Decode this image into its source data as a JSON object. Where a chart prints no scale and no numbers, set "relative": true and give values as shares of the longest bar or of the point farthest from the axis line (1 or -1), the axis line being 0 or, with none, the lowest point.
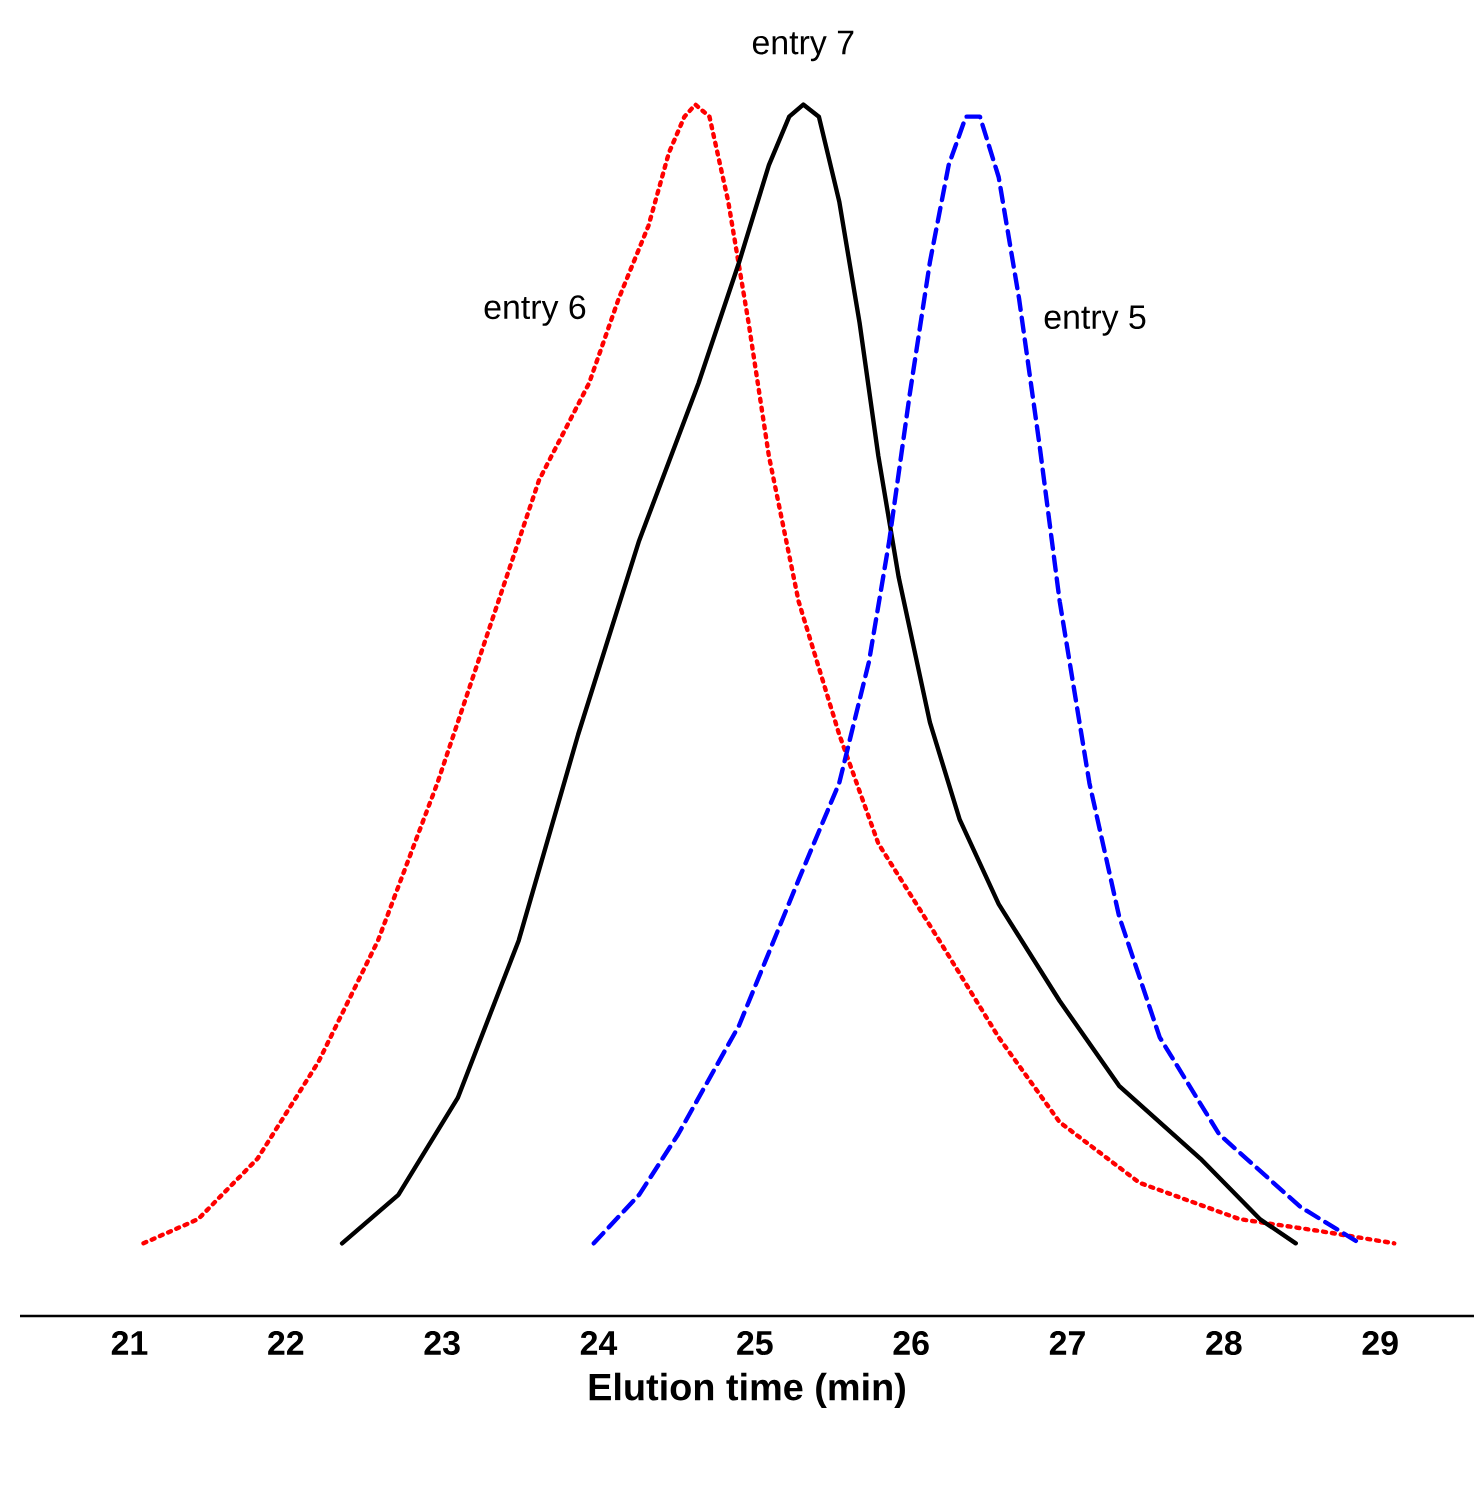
{
  "chart_data": {
    "type": "line",
    "relative": true,
    "xlabel": "Elution time (min)",
    "xlim": [
      20.3,
      29.6
    ],
    "xticks": [
      21,
      22,
      23,
      24,
      25,
      26,
      27,
      28,
      29
    ],
    "series": [
      {
        "name": "entry 6",
        "color": "#ff0000",
        "line_style": "dotted",
        "x": [
          21.09,
          21.44,
          21.82,
          22.21,
          22.59,
          22.97,
          23.36,
          23.62,
          23.94,
          24.13,
          24.32,
          24.45,
          24.55,
          24.62,
          24.71,
          24.83,
          24.96,
          25.09,
          25.28,
          25.54,
          25.79,
          26.18,
          26.56,
          26.95,
          27.46,
          28.1,
          28.62,
          29.09
        ],
        "values": [
          0.06,
          0.08,
          0.13,
          0.21,
          0.31,
          0.44,
          0.59,
          0.69,
          0.77,
          0.84,
          0.9,
          0.96,
          0.99,
          1.0,
          0.99,
          0.92,
          0.82,
          0.71,
          0.59,
          0.48,
          0.39,
          0.31,
          0.23,
          0.16,
          0.11,
          0.08,
          0.07,
          0.06
        ]
      },
      {
        "name": "entry 7",
        "color": "#000000",
        "line_style": "solid",
        "x": [
          22.36,
          22.72,
          23.1,
          23.49,
          23.87,
          24.26,
          24.64,
          24.9,
          25.09,
          25.22,
          25.31,
          25.41,
          25.54,
          25.67,
          25.79,
          25.92,
          26.12,
          26.31,
          26.56,
          26.95,
          27.33,
          27.85,
          28.23,
          28.46
        ],
        "values": [
          0.06,
          0.1,
          0.18,
          0.31,
          0.48,
          0.64,
          0.77,
          0.87,
          0.95,
          0.99,
          1.0,
          0.99,
          0.92,
          0.82,
          0.71,
          0.61,
          0.49,
          0.41,
          0.34,
          0.26,
          0.19,
          0.13,
          0.08,
          0.06
        ]
      },
      {
        "name": "entry 5",
        "color": "#0000ff",
        "line_style": "dashed",
        "x": [
          23.97,
          24.26,
          24.51,
          24.9,
          25.28,
          25.54,
          25.73,
          25.86,
          25.99,
          26.12,
          26.24,
          26.35,
          26.44,
          26.56,
          26.69,
          26.82,
          26.95,
          27.14,
          27.33,
          27.59,
          27.97,
          28.49,
          28.87
        ],
        "values": [
          0.06,
          0.1,
          0.15,
          0.24,
          0.36,
          0.44,
          0.54,
          0.64,
          0.76,
          0.87,
          0.95,
          0.99,
          0.99,
          0.94,
          0.84,
          0.72,
          0.59,
          0.44,
          0.33,
          0.23,
          0.15,
          0.09,
          0.06
        ]
      }
    ]
  }
}
